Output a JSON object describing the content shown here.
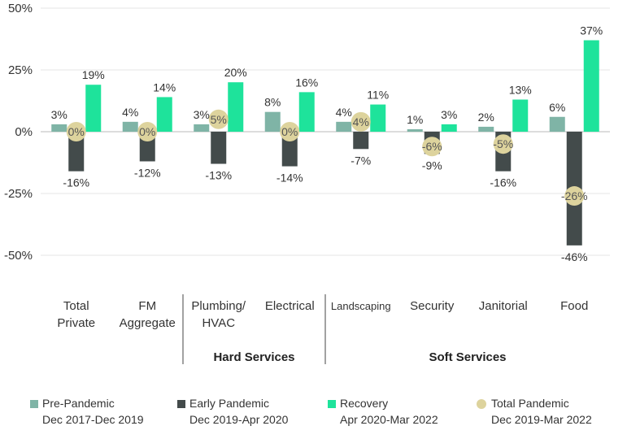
{
  "chart_data": {
    "type": "bar",
    "categories": [
      [
        "Total",
        "Private"
      ],
      [
        "FM",
        "Aggregate"
      ],
      [
        "Plumbing/",
        "HVAC"
      ],
      [
        "Electrical"
      ],
      [
        "Landscaping"
      ],
      [
        "Security"
      ],
      [
        "Janitorial"
      ],
      [
        "Food"
      ]
    ],
    "series": [
      {
        "name": "Pre-Pandemic",
        "period": "Dec 2017-Dec 2019",
        "color": "#7fb4a6",
        "values": [
          3,
          4,
          3,
          8,
          4,
          1,
          2,
          6
        ],
        "labels": [
          "3%",
          "4%",
          "3%",
          "8%",
          "4%",
          "1%",
          "2%",
          "6%"
        ]
      },
      {
        "name": "Early Pandemic",
        "period": "Dec 2019-Apr 2020",
        "color": "#434b4b",
        "values": [
          -16,
          -12,
          -13,
          -14,
          -7,
          -9,
          -16,
          -46
        ],
        "labels": [
          "-16%",
          "-12%",
          "-13%",
          "-14%",
          "-7%",
          "-9%",
          "-16%",
          "-46%"
        ]
      },
      {
        "name": "Recovery",
        "period": "Apr 2020-Mar 2022",
        "color": "#1ee39b",
        "values": [
          19,
          14,
          20,
          16,
          11,
          3,
          13,
          37
        ],
        "labels": [
          "19%",
          "14%",
          "20%",
          "16%",
          "11%",
          "3%",
          "13%",
          "37%"
        ]
      },
      {
        "name": "Total Pandemic",
        "period": "Dec 2019-Mar 2022",
        "color": "#ddd39d",
        "values": [
          0,
          0,
          5,
          0,
          4,
          -6,
          -5,
          -26
        ],
        "labels": [
          "0%",
          "0%",
          "5%",
          "0%",
          "4%",
          "-6%",
          "-5%",
          "-26%"
        ]
      }
    ],
    "yticks": [
      {
        "value": 50,
        "label": "50%"
      },
      {
        "value": 25,
        "label": "25%"
      },
      {
        "value": 0,
        "label": "0%"
      },
      {
        "value": -25,
        "label": "-25%"
      },
      {
        "value": -50,
        "label": "-50%"
      }
    ],
    "ylim": [
      -50,
      50
    ],
    "groups": [
      {
        "label": "Hard Services",
        "from": 2,
        "to": 3
      },
      {
        "label": "Soft Services",
        "from": 4,
        "to": 7
      }
    ],
    "grid": true,
    "legend_position": "bottom"
  }
}
